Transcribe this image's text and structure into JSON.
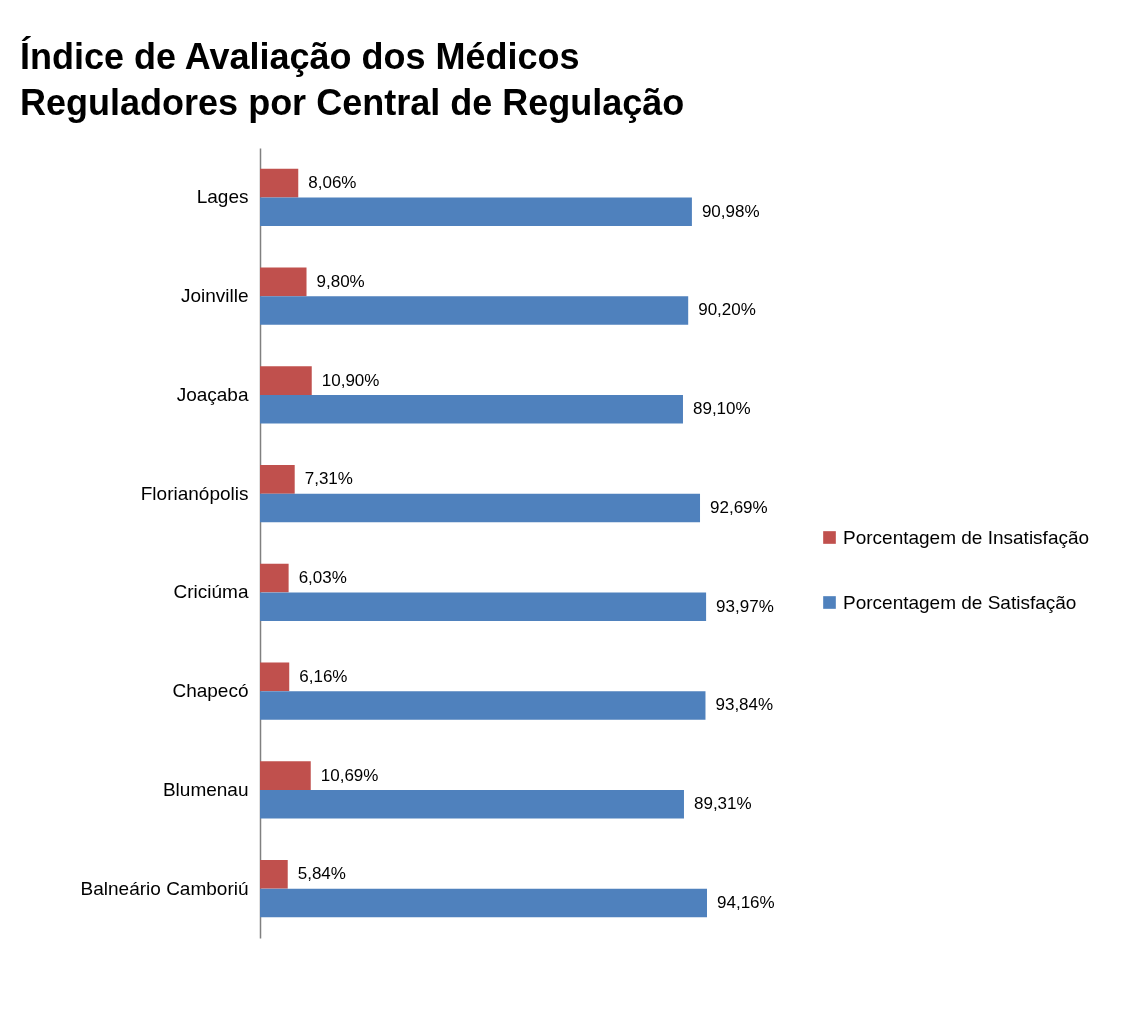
{
  "chart_data": {
    "type": "bar",
    "orientation": "horizontal",
    "title": "Índice de Avaliação dos Médicos Reguladores por Central de Regulação",
    "categories": [
      "Lages",
      "Joinville",
      "Joaçaba",
      "Florianópolis",
      "Criciúma",
      "Chapecó",
      "Blumenau",
      "Balneário Camboriú"
    ],
    "series": [
      {
        "name": "Porcentagem de Insatisfação",
        "color": "#c0504d",
        "values": [
          8.06,
          9.8,
          10.9,
          7.31,
          6.03,
          6.16,
          10.69,
          5.84
        ],
        "value_labels": [
          "8,06%",
          "9,80%",
          "10,90%",
          "7,31%",
          "6,03%",
          "6,16%",
          "10,69%",
          "5,84%"
        ]
      },
      {
        "name": "Porcentagem de Satisfação",
        "color": "#4f81bd",
        "values": [
          90.98,
          90.2,
          89.1,
          92.69,
          93.97,
          93.84,
          89.31,
          94.16
        ],
        "value_labels": [
          "90,98%",
          "90,20%",
          "89,10%",
          "92,69%",
          "93,97%",
          "93,84%",
          "89,31%",
          "94,16%"
        ]
      }
    ],
    "legend": "right",
    "grid": false
  }
}
